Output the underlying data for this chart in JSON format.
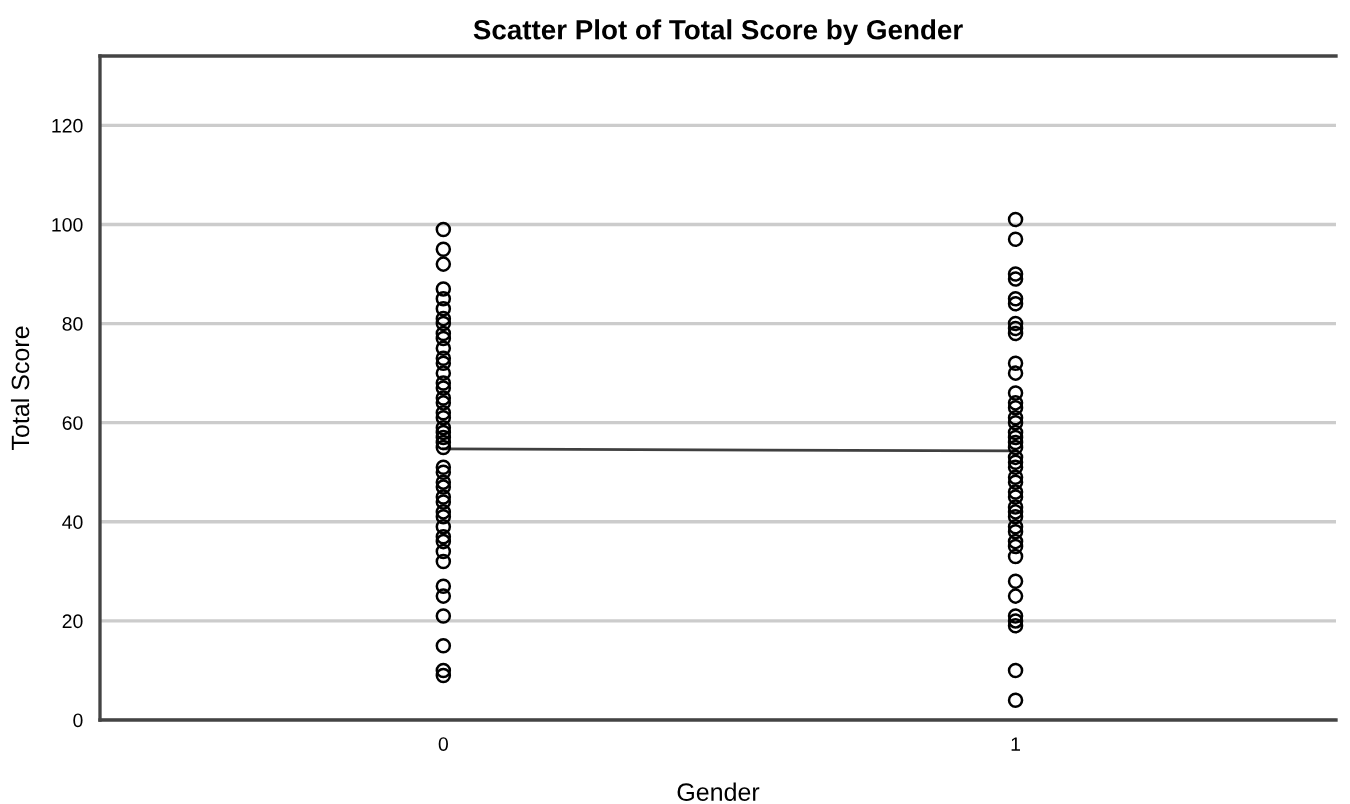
{
  "chart_data": {
    "type": "scatter",
    "title": "Scatter Plot of Total Score by Gender",
    "xlabel": "Gender",
    "ylabel": "Total Score",
    "categories": [
      "0",
      "1"
    ],
    "ylim": [
      0,
      134
    ],
    "yticks": [
      0,
      20,
      40,
      60,
      80,
      100,
      120
    ],
    "grid": "y",
    "marker": "circle",
    "series": [
      {
        "color": "#000000",
        "x": [
          "0",
          "1",
          "0",
          "1",
          "0",
          "1",
          "0",
          "1",
          "0",
          "1",
          "0",
          "1",
          "0",
          "1",
          "0",
          "1",
          "0",
          "1",
          "0",
          "1",
          "0",
          "1",
          "0",
          "1",
          "0",
          "1",
          "0",
          "1",
          "0",
          "1",
          "0",
          "1",
          "0",
          "1",
          "0",
          "1",
          "0",
          "1",
          "0",
          "1",
          "0",
          "1",
          "0",
          "1",
          "0",
          "1",
          "0",
          "1",
          "0",
          "1",
          "0",
          "1",
          "0",
          "1",
          "0",
          "1",
          "0",
          "1",
          "0",
          "1",
          "0",
          "1",
          "0",
          "1",
          "0",
          "1",
          "0",
          "1",
          "0",
          "1",
          "0",
          "1",
          "0",
          "1",
          "0",
          "1",
          "0",
          "1",
          "0",
          "1",
          "0",
          "1",
          "0",
          "1",
          "0",
          "0"
        ],
        "values": [
          99,
          101,
          95,
          97,
          92,
          90,
          87,
          89,
          85,
          85,
          83,
          84,
          81,
          80,
          80,
          79,
          78,
          78,
          77,
          72,
          75,
          70,
          73,
          66,
          72,
          64,
          70,
          63,
          68,
          61,
          67,
          60,
          65,
          58,
          64,
          57,
          62,
          56,
          61,
          55,
          59,
          53,
          58,
          52,
          57,
          51,
          56,
          49,
          55,
          48,
          51,
          46,
          50,
          45,
          48,
          43,
          47,
          42,
          45,
          41,
          44,
          39,
          42,
          38,
          41,
          36,
          39,
          35,
          37,
          33,
          36,
          28,
          34,
          25,
          32,
          21,
          27,
          20,
          25,
          19,
          21,
          10,
          15,
          4,
          10,
          9
        ]
      },
      {
        "type": "line",
        "color": "#404040",
        "marker": "none",
        "line_style": "solid",
        "x": [
          "0",
          "1"
        ],
        "values": [
          54.7,
          54.3
        ]
      }
    ]
  }
}
